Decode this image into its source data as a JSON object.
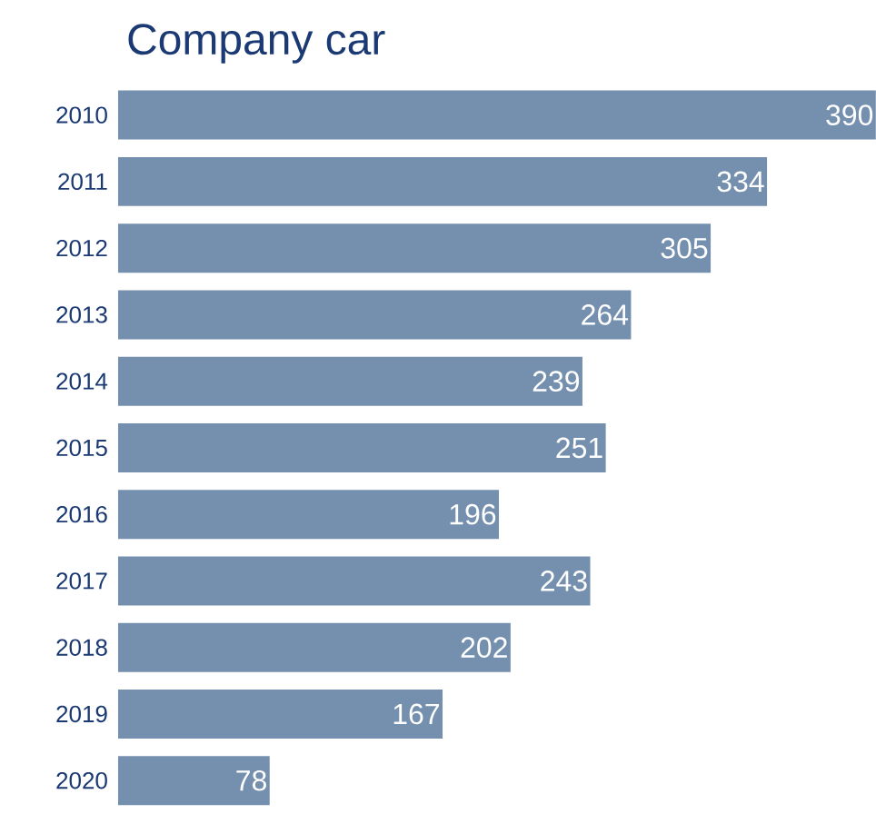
{
  "chart_data": {
    "type": "bar",
    "orientation": "horizontal",
    "title": "Company car",
    "categories": [
      "2010",
      "2011",
      "2012",
      "2013",
      "2014",
      "2015",
      "2016",
      "2017",
      "2018",
      "2019",
      "2020"
    ],
    "values": [
      390,
      334,
      305,
      264,
      239,
      251,
      196,
      243,
      202,
      167,
      78
    ],
    "color": "#7590ae",
    "xlim": [
      0,
      390
    ],
    "data_labels": true
  }
}
